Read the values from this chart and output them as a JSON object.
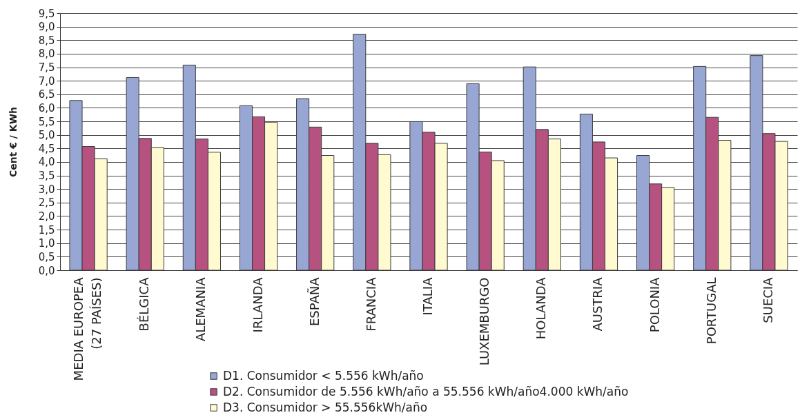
{
  "chart_data": {
    "type": "bar",
    "ylabel": "Cent € / KWh",
    "categories": [
      "MEDIA EUROPEA (27 PAÍSES)",
      "BÉLGICA",
      "ALEMANIA",
      "IRLANDA",
      "ESPAÑA",
      "FRANCIA",
      "ITALIA",
      "LUXEMBURGO",
      "HOLANDA",
      "AUSTRIA",
      "POLONIA",
      "PORTUGAL",
      "SUECIA"
    ],
    "series": [
      {
        "name": "D1. Consumidor < 5.556 kWh/año",
        "color": "#98a6d4",
        "values": [
          6.27,
          7.12,
          7.58,
          6.08,
          6.34,
          8.72,
          5.49,
          6.89,
          7.51,
          5.77,
          4.24,
          7.53,
          7.93
        ]
      },
      {
        "name": "D2. Consumidor de 5.556 kWh/año a 55.556 kWh/año4.000 kWh/año",
        "color": "#b55280",
        "values": [
          4.57,
          4.87,
          4.85,
          5.67,
          5.29,
          4.69,
          5.1,
          4.37,
          5.2,
          4.74,
          3.19,
          5.65,
          5.05
        ]
      },
      {
        "name": "D3. Consumidor > 55.556kWh/año",
        "color": "#fffad0",
        "values": [
          4.12,
          4.54,
          4.36,
          5.47,
          4.24,
          4.27,
          4.69,
          4.05,
          4.85,
          4.15,
          3.06,
          4.8,
          4.76
        ]
      }
    ],
    "ylim": [
      0,
      9.5
    ],
    "yticks": [
      {
        "value": 0,
        "label": "0,0"
      },
      {
        "value": 0.5,
        "label": "0,5"
      },
      {
        "value": 1,
        "label": "1,0"
      },
      {
        "value": 1.5,
        "label": "1,5"
      },
      {
        "value": 2,
        "label": "2,0"
      },
      {
        "value": 2.5,
        "label": "2,5"
      },
      {
        "value": 3,
        "label": "3,0"
      },
      {
        "value": 3.5,
        "label": "3,5"
      },
      {
        "value": 4,
        "label": "4,0"
      },
      {
        "value": 4.5,
        "label": "4,5"
      },
      {
        "value": 5,
        "label": "5,0"
      },
      {
        "value": 5.5,
        "label": "5,5"
      },
      {
        "value": 6,
        "label": "6,0"
      },
      {
        "value": 6.5,
        "label": "6,5"
      },
      {
        "value": 7,
        "label": "7,0"
      },
      {
        "value": 7.5,
        "label": "7,5"
      },
      {
        "value": 8,
        "label": "8,0"
      },
      {
        "value": 8.5,
        "label": "8,5"
      },
      {
        "value": 9,
        "label": "9,0"
      },
      {
        "value": 9.5,
        "label": "9,5"
      }
    ],
    "grid": "y",
    "legend": "bottom"
  }
}
